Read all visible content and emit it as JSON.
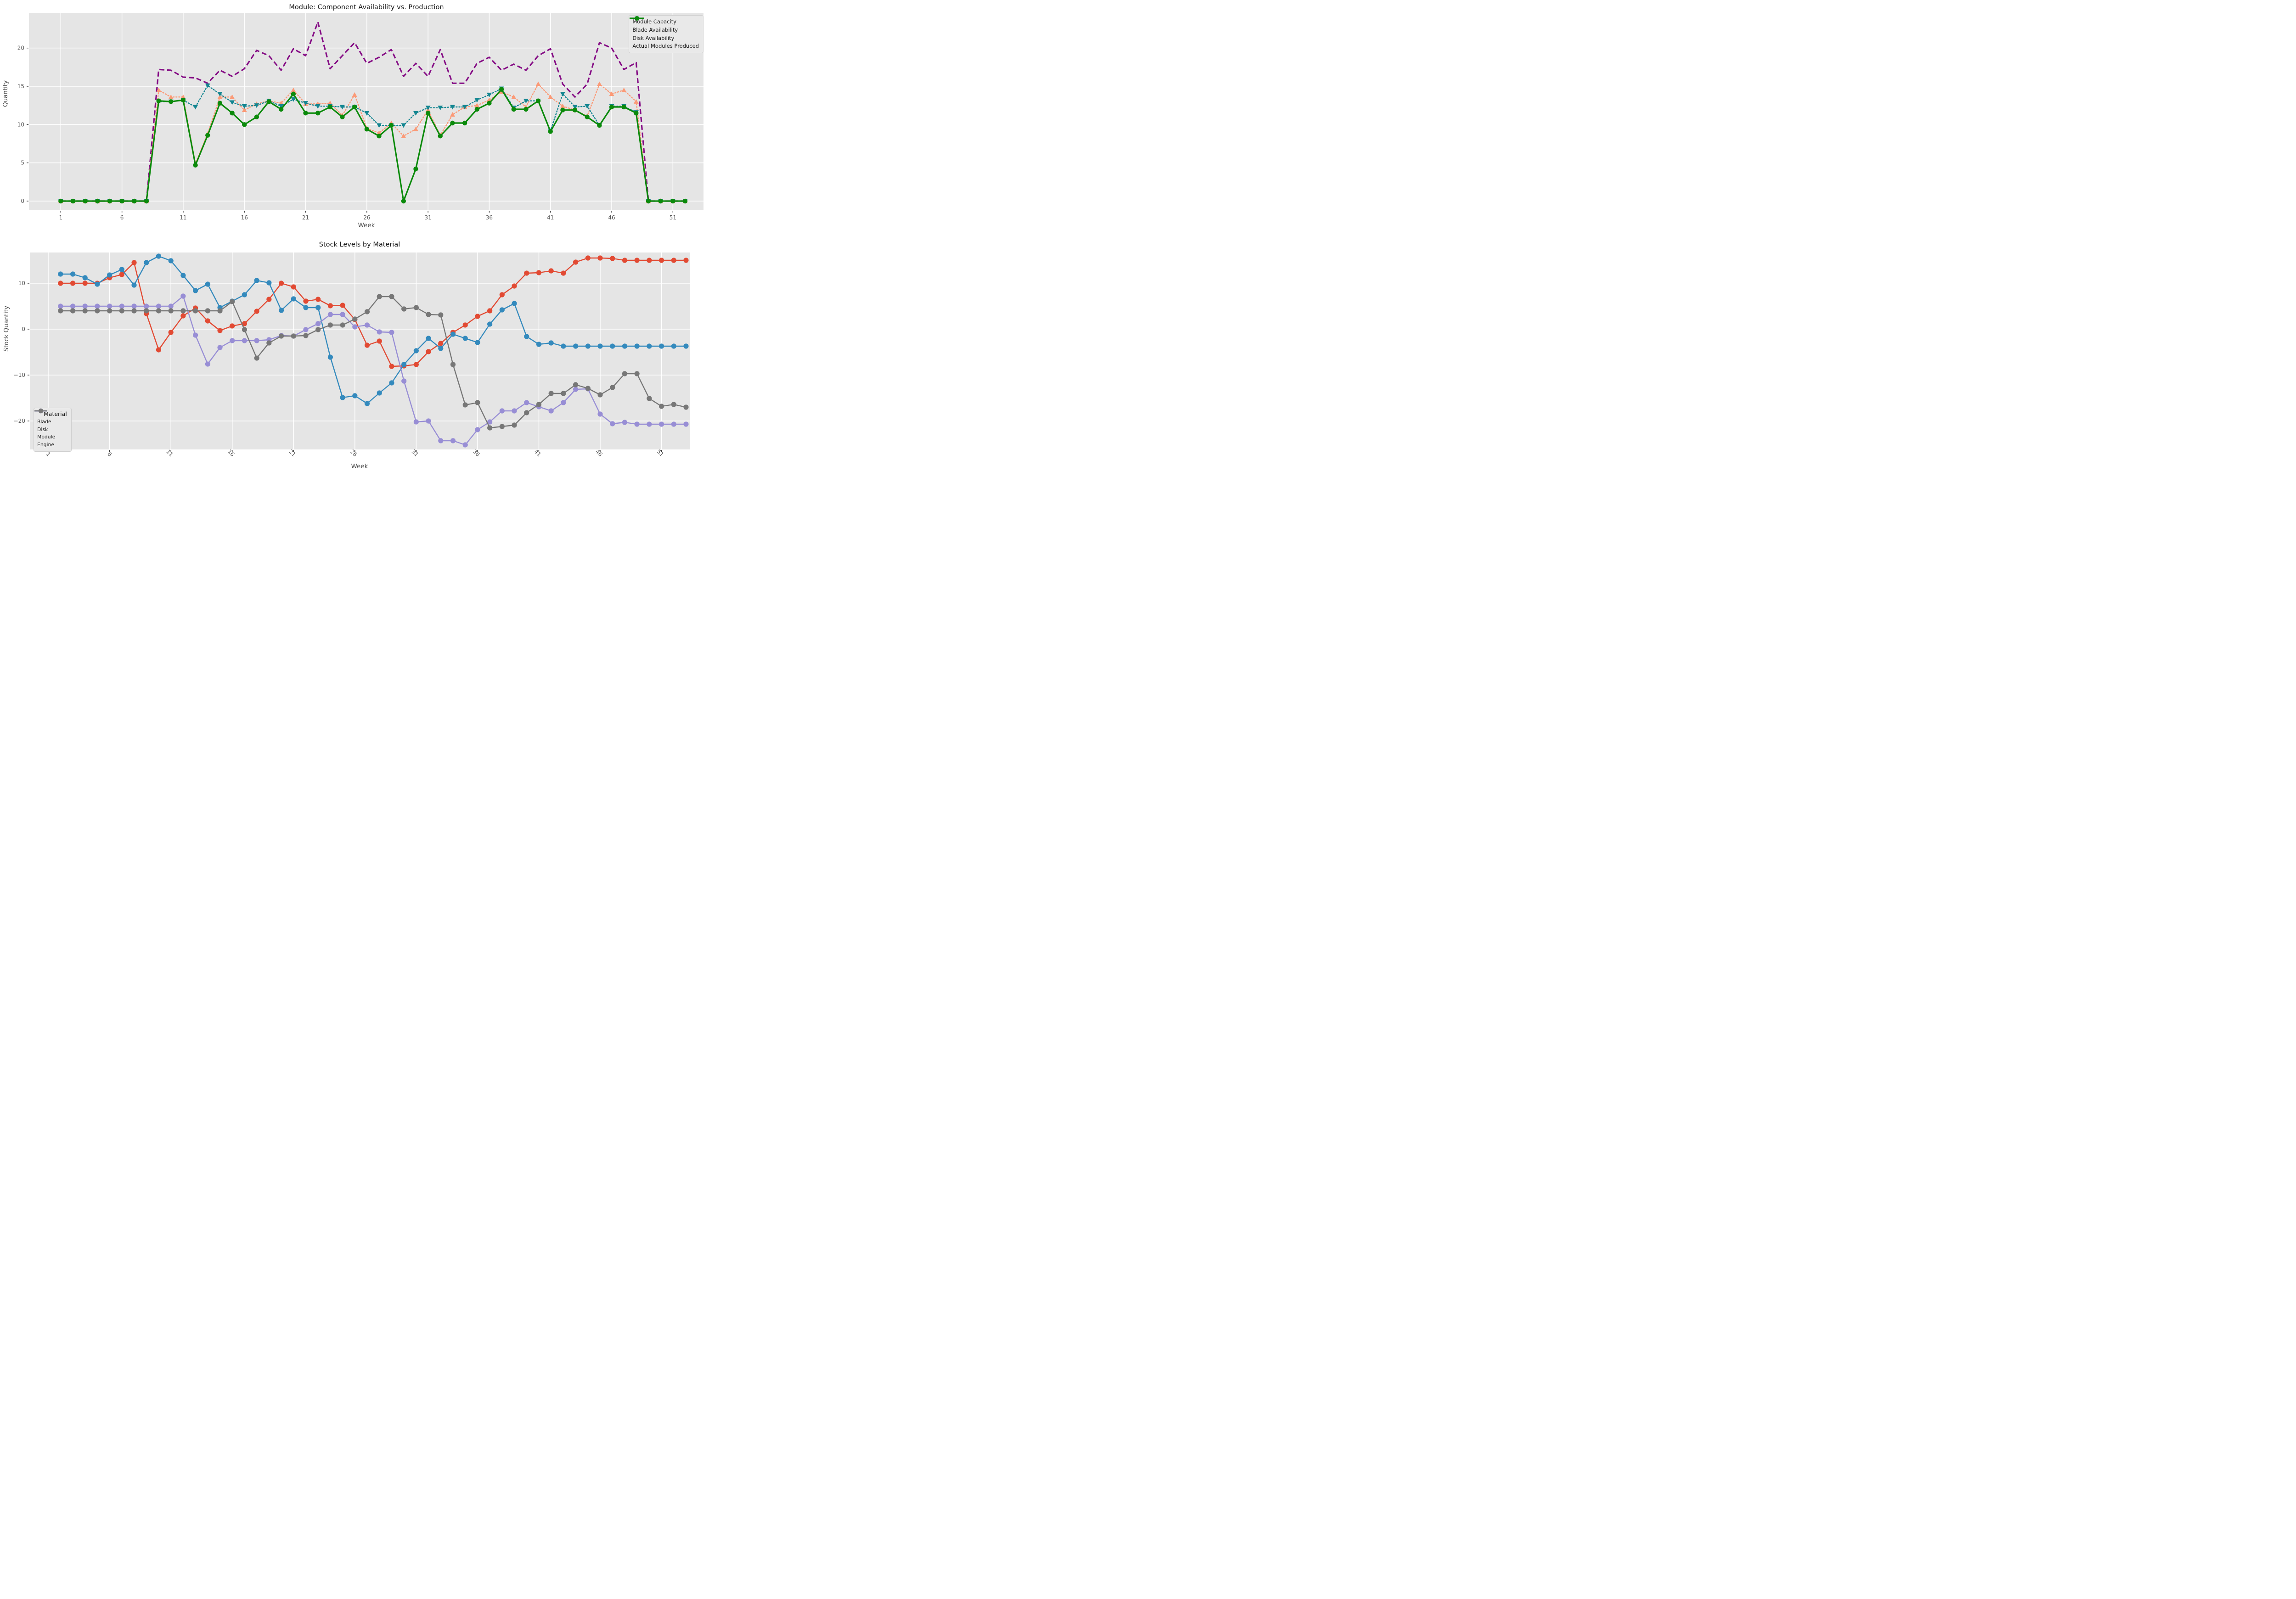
{
  "chart_data": [
    {
      "type": "line",
      "title": "Module: Component Availability vs. Production",
      "xlabel": "Week",
      "ylabel": "Quantity",
      "xticks": [
        1,
        6,
        11,
        16,
        21,
        26,
        31,
        36,
        41,
        46,
        51
      ],
      "yticks": [
        0,
        5,
        10,
        15,
        20
      ],
      "ytick_labels": [
        "0",
        "5",
        "10",
        "15",
        "20"
      ],
      "xlim": [
        -1.6,
        53.5
      ],
      "ylim": [
        -1.2,
        24.6
      ],
      "grid": true,
      "legend_position": "top-right",
      "plot_bg": "#e5e5e5",
      "grid_color": "#ffffff",
      "x_weeks_start": 1,
      "series": [
        {
          "name": "Module Capacity",
          "color": "#850d85",
          "style": "dashed",
          "marker": "none",
          "values": [
            0,
            0,
            0,
            0,
            0,
            0,
            0,
            0,
            17.2,
            17.1,
            16.2,
            16.1,
            15.4,
            17.1,
            16.3,
            17.3,
            19.7,
            19.0,
            17.1,
            19.9,
            19.0,
            23.4,
            17.3,
            19.0,
            20.7,
            18.0,
            18.8,
            19.8,
            16.3,
            18.0,
            16.3,
            19.8,
            15.4,
            15.4,
            18.0,
            18.8,
            17.1,
            17.9,
            17.1,
            19.0,
            19.9,
            15.3,
            13.6,
            15.3,
            20.7,
            20.0,
            17.2,
            18.1,
            0,
            0,
            0,
            0
          ]
        },
        {
          "name": "Blade Availability",
          "color": "#fb9a77",
          "style": "dotted",
          "marker": "triangle-up",
          "values": [
            0,
            0,
            0,
            0,
            0,
            0,
            0,
            0,
            14.5,
            13.6,
            13.6,
            4.9,
            8.8,
            13.6,
            13.6,
            11.9,
            12.7,
            13.1,
            12.8,
            14.5,
            12.7,
            12.7,
            12.8,
            11.2,
            13.9,
            9.5,
            8.9,
            10.2,
            8.5,
            9.4,
            11.9,
            8.6,
            11.3,
            12.3,
            12.5,
            13.2,
            14.3,
            13.6,
            12.3,
            15.3,
            13.6,
            12.4,
            11.9,
            11.1,
            15.3,
            14.0,
            14.5,
            13.0,
            0,
            0,
            0,
            0
          ]
        },
        {
          "name": "Disk Availability",
          "color": "#148691",
          "style": "dotted",
          "marker": "triangle-down",
          "values": [
            0,
            0,
            0,
            0,
            0,
            0,
            0,
            0,
            13.0,
            13.0,
            13.2,
            12.3,
            15.1,
            14.0,
            12.9,
            12.4,
            12.5,
            13.1,
            12.4,
            13.3,
            12.8,
            12.4,
            12.4,
            12.3,
            12.3,
            11.5,
            9.9,
            9.9,
            9.9,
            11.5,
            12.2,
            12.2,
            12.3,
            12.3,
            13.2,
            13.9,
            14.7,
            12.2,
            13.1,
            13.1,
            9.2,
            14.0,
            12.3,
            12.4,
            9.9,
            12.4,
            12.4,
            11.6,
            0,
            0,
            0,
            0
          ]
        },
        {
          "name": "Actual Modules Produced",
          "color": "#0b8a0b",
          "style": "solid",
          "marker": "circle",
          "values": [
            0,
            0,
            0,
            0,
            0,
            0,
            0,
            0,
            13.1,
            13.0,
            13.2,
            4.7,
            8.6,
            12.8,
            11.5,
            10.0,
            11.0,
            13.0,
            12.0,
            14.0,
            11.5,
            11.5,
            12.3,
            11.0,
            12.3,
            9.4,
            8.5,
            9.9,
            0.0,
            4.2,
            11.5,
            8.5,
            10.2,
            10.2,
            12.0,
            12.8,
            14.6,
            12.0,
            12.0,
            13.1,
            9.1,
            11.9,
            11.9,
            11.0,
            9.9,
            12.3,
            12.3,
            11.5,
            0,
            0,
            0,
            0
          ]
        }
      ]
    },
    {
      "type": "line",
      "title": "Stock Levels by Material",
      "xlabel": "Week",
      "ylabel": "Stock Quantity",
      "xticks": [
        1,
        6,
        11,
        16,
        21,
        26,
        31,
        36,
        41,
        46,
        51
      ],
      "yticks": [
        10,
        0,
        -10,
        -20
      ],
      "ytick_labels": [
        "10",
        "0",
        "−10",
        "−20"
      ],
      "xlim": [
        -0.5,
        53.3
      ],
      "ylim": [
        -26.2,
        16.7
      ],
      "grid": true,
      "rotated_xticks": 45,
      "legend_position": "bottom-left",
      "legend_title": "Material",
      "plot_bg": "#e5e5e5",
      "grid_color": "#ffffff",
      "x_weeks_start": 2,
      "series": [
        {
          "name": "Blade",
          "color": "#e24a33",
          "style": "solid",
          "marker": "circle",
          "values": [
            10.0,
            10.0,
            10.0,
            10.0,
            11.2,
            11.9,
            14.5,
            3.4,
            -4.5,
            -0.7,
            2.9,
            4.6,
            1.8,
            -0.3,
            0.7,
            1.2,
            3.9,
            6.5,
            10.0,
            9.2,
            6.1,
            6.5,
            5.1,
            5.2,
            2.1,
            -3.5,
            -2.6,
            -8.1,
            -8.0,
            -7.7,
            -4.9,
            -3.1,
            -0.7,
            0.9,
            2.8,
            4.0,
            7.5,
            9.4,
            12.2,
            12.3,
            12.7,
            12.2,
            14.6,
            15.5,
            15.5,
            15.4,
            15.0,
            15.0,
            15.0,
            15.0,
            15.0,
            15.0
          ]
        },
        {
          "name": "Disk",
          "color": "#348abd",
          "style": "solid",
          "marker": "circle",
          "values": [
            12.0,
            12.0,
            11.2,
            9.8,
            11.8,
            13.0,
            9.6,
            14.5,
            15.9,
            14.9,
            11.7,
            8.4,
            9.8,
            4.7,
            6.1,
            7.5,
            10.6,
            10.1,
            4.1,
            6.6,
            4.7,
            4.7,
            -6.1,
            -14.9,
            -14.5,
            -16.2,
            -13.9,
            -11.7,
            -7.7,
            -4.7,
            -2.0,
            -4.2,
            -1.1,
            -2.0,
            -2.9,
            1.1,
            4.2,
            5.6,
            -1.6,
            -3.3,
            -3.0,
            -3.7,
            -3.7,
            -3.7,
            -3.7,
            -3.7,
            -3.7,
            -3.7,
            -3.7,
            -3.7,
            -3.7,
            -3.7
          ]
        },
        {
          "name": "Module",
          "color": "#988ed5",
          "style": "solid",
          "marker": "circle",
          "values": [
            5.0,
            5.0,
            5.0,
            5.0,
            5.0,
            5.0,
            5.0,
            5.0,
            5.0,
            5.0,
            7.2,
            -1.3,
            -7.6,
            -4.0,
            -2.5,
            -2.5,
            -2.5,
            -2.3,
            -1.4,
            -1.5,
            -0.1,
            1.2,
            3.2,
            3.2,
            0.5,
            0.9,
            -0.6,
            -0.7,
            -11.3,
            -20.2,
            -20.0,
            -24.3,
            -24.3,
            -25.2,
            -21.9,
            -20.2,
            -17.8,
            -17.8,
            -16.0,
            -16.9,
            -17.8,
            -16.0,
            -13.1,
            -13.0,
            -18.5,
            -20.6,
            -20.3,
            -20.7,
            -20.7,
            -20.7,
            -20.7,
            -20.7
          ]
        },
        {
          "name": "Engine",
          "color": "#777777",
          "style": "solid",
          "marker": "circle",
          "values": [
            4.0,
            4.0,
            4.0,
            4.0,
            4.0,
            4.0,
            4.0,
            4.0,
            4.0,
            4.0,
            4.0,
            4.0,
            4.0,
            4.0,
            6.0,
            -0.1,
            -6.3,
            -3.0,
            -1.5,
            -1.5,
            -1.4,
            -0.1,
            0.9,
            0.9,
            2.2,
            3.8,
            7.1,
            7.1,
            4.4,
            4.7,
            3.2,
            3.1,
            -7.7,
            -16.5,
            -16.0,
            -21.5,
            -21.2,
            -20.9,
            -18.2,
            -16.4,
            -14.0,
            -14.0,
            -12.1,
            -12.9,
            -14.3,
            -12.7,
            -9.7,
            -9.7,
            -15.1,
            -16.8,
            -16.4,
            -17.0
          ]
        }
      ]
    }
  ]
}
